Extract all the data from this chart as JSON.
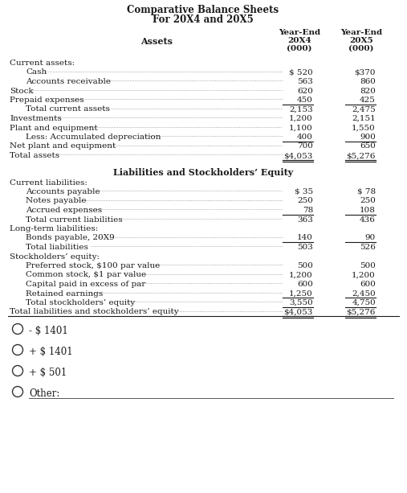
{
  "title_line1": "Comparative Balance Sheets",
  "title_line2": "For 20X4 and 20X5",
  "col_header_20x4_line1": "Year-End",
  "col_header_20x4_line2": "20X4",
  "col_header_20x4_line3": "(000)",
  "col_header_20x5_line1": "Year-End",
  "col_header_20x5_line2": "20X5",
  "col_header_20x5_line3": "(000)",
  "assets_rows": [
    {
      "label": "Current assets:",
      "val4": "",
      "val5": "",
      "indent": 0,
      "underline4": false,
      "underline5": false,
      "dollar4": false,
      "dollar5": false
    },
    {
      "label": "Cash",
      "val4": "$ 520",
      "val5": "$370",
      "indent": 2,
      "underline4": false,
      "underline5": false,
      "dollar4": false,
      "dollar5": false
    },
    {
      "label": "Accounts receivable",
      "val4": "563",
      "val5": "860",
      "indent": 2,
      "underline4": false,
      "underline5": false,
      "dollar4": false,
      "dollar5": false
    },
    {
      "label": "Stock",
      "val4": "620",
      "val5": "820",
      "indent": 0,
      "underline4": false,
      "underline5": false,
      "dollar4": false,
      "dollar5": false
    },
    {
      "label": "Prepaid expenses",
      "val4": "450",
      "val5": "425",
      "indent": 0,
      "underline4": true,
      "underline5": true,
      "dollar4": false,
      "dollar5": false
    },
    {
      "label": "Total current assets",
      "val4": "2,153",
      "val5": "2,475",
      "indent": 2,
      "underline4": false,
      "underline5": false,
      "dollar4": false,
      "dollar5": false
    },
    {
      "label": "Investments",
      "val4": "1,200",
      "val5": "2,151",
      "indent": 0,
      "underline4": false,
      "underline5": false,
      "dollar4": false,
      "dollar5": false
    },
    {
      "label": "Plant and equipment",
      "val4": "1,100",
      "val5": "1,550",
      "indent": 0,
      "underline4": false,
      "underline5": false,
      "dollar4": false,
      "dollar5": false
    },
    {
      "label": "Less: Accumulated depreciation",
      "val4": "400",
      "val5": "900",
      "indent": 2,
      "underline4": true,
      "underline5": true,
      "dollar4": false,
      "dollar5": false
    },
    {
      "label": "Net plant and equipment",
      "val4": "700",
      "val5": "650",
      "indent": 0,
      "underline4": false,
      "underline5": false,
      "dollar4": false,
      "dollar5": false
    },
    {
      "label": "Total assets",
      "val4": "$4,053",
      "val5": "$5,276",
      "indent": 0,
      "underline4": true,
      "underline5": true,
      "dollar4": false,
      "dollar5": false,
      "double_underline": true
    }
  ],
  "liabilities_section_title": "Liabilities and Stockholders’ Equity",
  "liabilities_rows": [
    {
      "label": "Current liabilities:",
      "val4": "",
      "val5": "",
      "indent": 0,
      "underline4": false,
      "underline5": false,
      "dollar4": false,
      "dollar5": false
    },
    {
      "label": "Accounts payable",
      "val4": "$ 35",
      "val5": "$ 78",
      "indent": 2,
      "underline4": false,
      "underline5": false,
      "dollar4": false,
      "dollar5": false
    },
    {
      "label": "Notes payable",
      "val4": "250",
      "val5": "250",
      "indent": 2,
      "underline4": false,
      "underline5": false,
      "dollar4": false,
      "dollar5": false
    },
    {
      "label": "Accrued expenses",
      "val4": "78",
      "val5": "108",
      "indent": 2,
      "underline4": true,
      "underline5": true,
      "dollar4": false,
      "dollar5": false
    },
    {
      "label": "Total current liabilities",
      "val4": "363",
      "val5": "436",
      "indent": 2,
      "underline4": false,
      "underline5": false,
      "dollar4": false,
      "dollar5": false
    },
    {
      "label": "Long-term liabilities:",
      "val4": "",
      "val5": "",
      "indent": 0,
      "underline4": false,
      "underline5": false,
      "dollar4": false,
      "dollar5": false
    },
    {
      "label": "Bonds payable, 20X9",
      "val4": "140",
      "val5": "90",
      "indent": 2,
      "underline4": true,
      "underline5": true,
      "dollar4": false,
      "dollar5": false
    },
    {
      "label": "Total liabilities",
      "val4": "503",
      "val5": "526",
      "indent": 2,
      "underline4": false,
      "underline5": false,
      "dollar4": false,
      "dollar5": false
    },
    {
      "label": "Stockholders’ equity:",
      "val4": "",
      "val5": "",
      "indent": 0,
      "underline4": false,
      "underline5": false,
      "dollar4": false,
      "dollar5": false
    },
    {
      "label": "Preferred stock, $100 par value",
      "val4": "500",
      "val5": "500",
      "indent": 2,
      "underline4": false,
      "underline5": false,
      "dollar4": false,
      "dollar5": false
    },
    {
      "label": "Common stock, $1 par value",
      "val4": "1,200",
      "val5": "1,200",
      "indent": 2,
      "underline4": false,
      "underline5": false,
      "dollar4": false,
      "dollar5": false
    },
    {
      "label": "Capital paid in excess of par",
      "val4": "600",
      "val5": "600",
      "indent": 2,
      "underline4": false,
      "underline5": false,
      "dollar4": false,
      "dollar5": false
    },
    {
      "label": "Retained earnings",
      "val4": "1,250",
      "val5": "2,450",
      "indent": 2,
      "underline4": true,
      "underline5": true,
      "dollar4": false,
      "dollar5": false
    },
    {
      "label": "Total stockholders’ equity",
      "val4": "3,550",
      "val5": "4,750",
      "indent": 2,
      "underline4": true,
      "underline5": true,
      "dollar4": false,
      "dollar5": false
    },
    {
      "label": "Total liabilities and stockholders’ equity",
      "val4": "$4,053",
      "val5": "$5,276",
      "indent": 0,
      "underline4": true,
      "underline5": true,
      "dollar4": false,
      "dollar5": false,
      "double_underline": true
    }
  ],
  "options": [
    "- $ 1401",
    "+ $ 1401",
    "+ $ 501",
    "Other:"
  ],
  "bg_color": "#ffffff",
  "text_color": "#1a1a1a",
  "font_size": 7.5,
  "title_font_size": 8.5
}
